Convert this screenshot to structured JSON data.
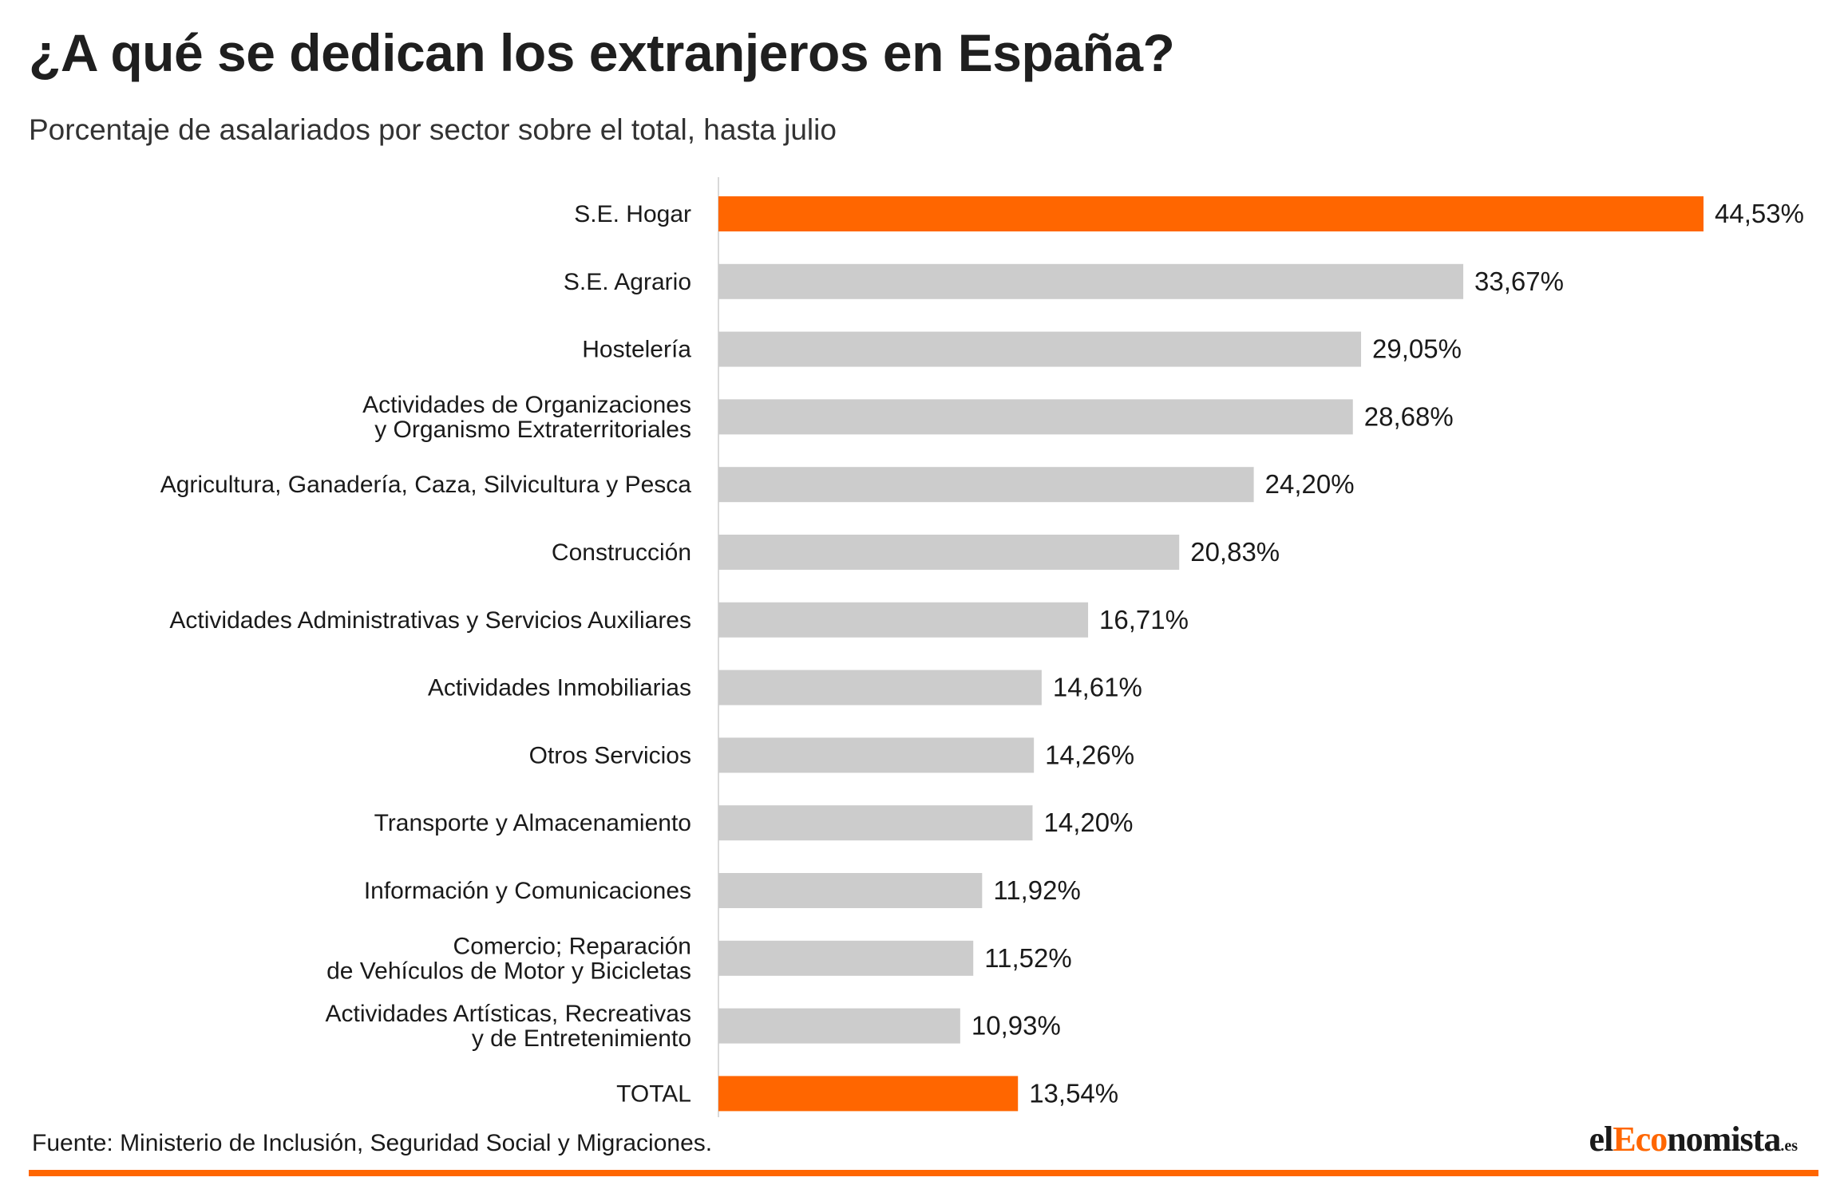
{
  "header": {
    "title": "¿A qué se dedican los extranjeros en España?",
    "subtitle": "Porcentaje de asalariados por sector sobre el total, hasta julio"
  },
  "colors": {
    "highlight": "#ff6600",
    "bar": "#cccccc",
    "axis": "#d9d9d9",
    "text": "#1a1a1a"
  },
  "chart_data": {
    "type": "bar",
    "orientation": "horizontal",
    "title": "¿A qué se dedican los extranjeros en España?",
    "subtitle": "Porcentaje de asalariados por sector sobre el total, hasta julio",
    "xlim": [
      0,
      50
    ],
    "grid": false,
    "categories": [
      [
        "S.E. Hogar"
      ],
      [
        "S.E. Agrario"
      ],
      [
        "Hostelería"
      ],
      [
        "Actividades de Organizaciones",
        "y Organismo Extraterritoriales"
      ],
      [
        "Agricultura, Ganadería, Caza, Silvicultura y  Pesca"
      ],
      [
        "Construcción"
      ],
      [
        "Actividades Administrativas y Servicios Auxiliares"
      ],
      [
        "Actividades Inmobiliarias"
      ],
      [
        "Otros Servicios"
      ],
      [
        "Transporte y Almacenamiento"
      ],
      [
        "Información y Comunicaciones"
      ],
      [
        "Comercio; Reparación",
        "de Vehículos de Motor y Bicicletas"
      ],
      [
        "Actividades Artísticas, Recreativas",
        "y de Entretenimiento"
      ],
      [
        "TOTAL"
      ]
    ],
    "values": [
      44.53,
      33.67,
      29.05,
      28.68,
      24.2,
      20.83,
      16.71,
      14.61,
      14.26,
      14.2,
      11.92,
      11.52,
      10.93,
      13.54
    ],
    "value_labels": [
      "44,53%",
      "33,67%",
      "29,05%",
      "28,68%",
      "24,20%",
      "20,83%",
      "16,71%",
      "14,61%",
      "14,26%",
      "14,20%",
      "11,92%",
      "11,52%",
      "10,93%",
      "13,54%"
    ],
    "highlighted": [
      "S.E. Hogar",
      "TOTAL"
    ]
  },
  "footer": {
    "source": "Fuente: Ministerio de Inclusión, Seguridad Social y Migraciones.",
    "logo_prefix": "el",
    "logo_accent": "Eco",
    "logo_rest": "nomista",
    "logo_tld": ".es"
  }
}
